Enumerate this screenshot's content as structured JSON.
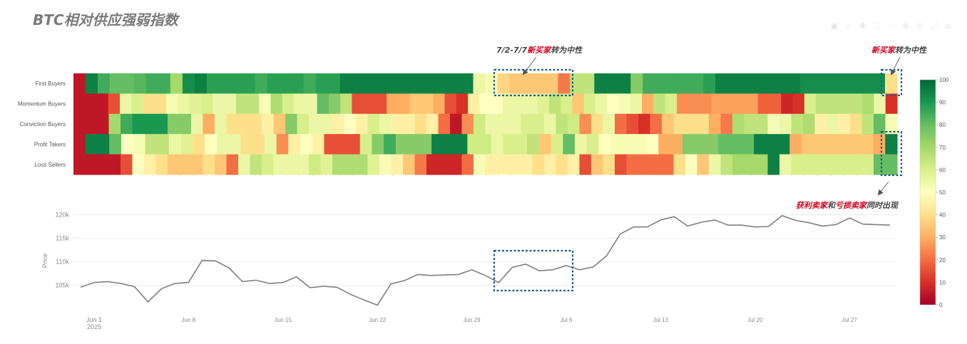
{
  "page": {
    "title": "BTC相对供应强弱指数"
  },
  "toolbar": {
    "icons": [
      "camera-icon",
      "zoom-icon",
      "pan-icon",
      "box-select-icon",
      "lasso-icon",
      "zoom-in-icon",
      "zoom-out-icon",
      "autoscale-icon",
      "reset-axes-icon"
    ],
    "glyphs": [
      "▣",
      "⌕",
      "✥",
      "⬚",
      "◌",
      "⊕",
      "⊖",
      "⤢",
      "⌂"
    ]
  },
  "annotations": {
    "top_mid": {
      "date": "7/2-7/7",
      "red": "新买家",
      "rest": "转为中性"
    },
    "top_right": {
      "red": "新买家",
      "rest": "转为中性"
    },
    "bottom_right": {
      "red1": "获利卖家",
      "mid": "和",
      "red2": "亏损卖家",
      "rest": "同时出现"
    }
  },
  "colors": {
    "line": "#7f7f7f",
    "highlight_box": "#1f5f8b",
    "annotation_red": "#d0021b"
  },
  "chart_data": [
    {
      "type": "heatmap",
      "rows": [
        "First Buyers",
        "Momentum Buyers",
        "Conviction Buyers",
        "Profit Takers",
        "Loss Sellers"
      ],
      "x_start": "2025-05-30",
      "x_end": "2025-07-31",
      "colorscale": "RdYlGn",
      "zmin": 0,
      "zmax": 100,
      "colorbar_ticks": [
        0,
        10,
        20,
        30,
        40,
        50,
        60,
        70,
        80,
        90,
        100
      ],
      "z": [
        [
          5,
          95,
          85,
          80,
          80,
          82,
          85,
          85,
          70,
          92,
          95,
          88,
          88,
          88,
          88,
          85,
          88,
          88,
          88,
          85,
          88,
          88,
          95,
          95,
          95,
          95,
          95,
          95,
          95,
          95,
          95,
          95,
          95,
          55,
          52,
          38,
          35,
          35,
          35,
          35,
          22,
          65,
          65,
          95,
          95,
          95,
          75,
          85,
          85,
          85,
          85,
          85,
          88,
          95,
          95,
          95,
          95,
          95,
          95,
          95,
          92,
          92,
          92,
          92,
          92,
          92,
          92,
          40
        ],
        [
          5,
          5,
          5,
          15,
          55,
          60,
          40,
          40,
          52,
          55,
          58,
          60,
          55,
          55,
          65,
          65,
          52,
          68,
          60,
          55,
          55,
          80,
          75,
          65,
          15,
          15,
          15,
          30,
          30,
          35,
          35,
          30,
          15,
          10,
          45,
          50,
          50,
          55,
          55,
          55,
          58,
          65,
          60,
          35,
          60,
          55,
          50,
          52,
          55,
          30,
          65,
          60,
          25,
          25,
          25,
          28,
          28,
          28,
          28,
          18,
          18,
          8,
          10,
          60,
          65,
          65,
          65,
          65,
          68,
          55,
          10
        ],
        [
          5,
          5,
          5,
          70,
          85,
          90,
          90,
          90,
          75,
          75,
          55,
          30,
          55,
          40,
          40,
          40,
          45,
          35,
          75,
          60,
          55,
          55,
          45,
          50,
          45,
          60,
          55,
          45,
          45,
          40,
          45,
          20,
          5,
          25,
          62,
          55,
          55,
          55,
          60,
          60,
          55,
          65,
          62,
          25,
          40,
          55,
          20,
          15,
          10,
          20,
          35,
          40,
          40,
          40,
          30,
          22,
          68,
          65,
          65,
          52,
          55,
          65,
          68,
          45,
          55,
          45,
          40,
          65,
          80,
          52
        ],
        [
          5,
          95,
          95,
          80,
          50,
          52,
          65,
          65,
          55,
          58,
          40,
          50,
          55,
          55,
          40,
          40,
          55,
          25,
          45,
          50,
          45,
          15,
          15,
          15,
          60,
          75,
          85,
          75,
          75,
          75,
          95,
          95,
          95,
          62,
          62,
          55,
          60,
          60,
          65,
          35,
          60,
          80,
          55,
          60,
          50,
          52,
          52,
          52,
          50,
          30,
          30,
          75,
          75,
          75,
          80,
          80,
          80,
          95,
          95,
          95,
          30,
          35,
          35,
          35,
          35,
          35,
          35,
          30,
          95
        ],
        [
          5,
          5,
          5,
          5,
          15,
          50,
          45,
          40,
          35,
          35,
          35,
          40,
          35,
          20,
          55,
          65,
          60,
          55,
          55,
          55,
          62,
          58,
          68,
          68,
          68,
          58,
          52,
          45,
          35,
          22,
          8,
          8,
          8,
          20,
          52,
          45,
          45,
          45,
          45,
          40,
          45,
          40,
          45,
          15,
          35,
          40,
          15,
          20,
          20,
          20,
          20,
          40,
          50,
          35,
          55,
          65,
          70,
          70,
          70,
          95,
          55,
          60,
          60,
          60,
          60,
          60,
          60,
          60,
          80,
          80
        ]
      ]
    },
    {
      "type": "line",
      "x_start": "2025-05-31",
      "ylabel": "Price",
      "y_ticks": [
        105000,
        110000,
        115000,
        120000
      ],
      "y_tick_labels": [
        "105k",
        "110k",
        "115k",
        "120k"
      ],
      "ylim": [
        99800,
        122500
      ],
      "x_ticks": [
        "2025-06-01",
        "2025-06-08",
        "2025-06-15",
        "2025-06-22",
        "2025-06-29",
        "2025-07-06",
        "2025-07-13",
        "2025-07-20",
        "2025-07-27"
      ],
      "x_tick_labels": [
        "Jun 1",
        "Jun 8",
        "Jun 15",
        "Jun 22",
        "Jun 29",
        "Jul 6",
        "Jul 13",
        "Jul 20",
        "Jul 27"
      ],
      "x_year_label": "2025",
      "values": [
        104600,
        105600,
        105800,
        105400,
        104700,
        101500,
        104300,
        105400,
        105600,
        110300,
        110200,
        108700,
        105800,
        106100,
        105400,
        105600,
        106800,
        104500,
        104800,
        104600,
        103100,
        101900,
        100800,
        105300,
        106000,
        107300,
        107100,
        107200,
        107300,
        108300,
        107100,
        105600,
        108800,
        109500,
        108100,
        108300,
        109200,
        108300,
        108900,
        111300,
        115900,
        117400,
        117400,
        118900,
        119600,
        117600,
        118400,
        118900,
        117800,
        117800,
        117400,
        117500,
        119800,
        118800,
        118300,
        117600,
        117900,
        119300,
        118000,
        117900,
        117800
      ]
    }
  ]
}
